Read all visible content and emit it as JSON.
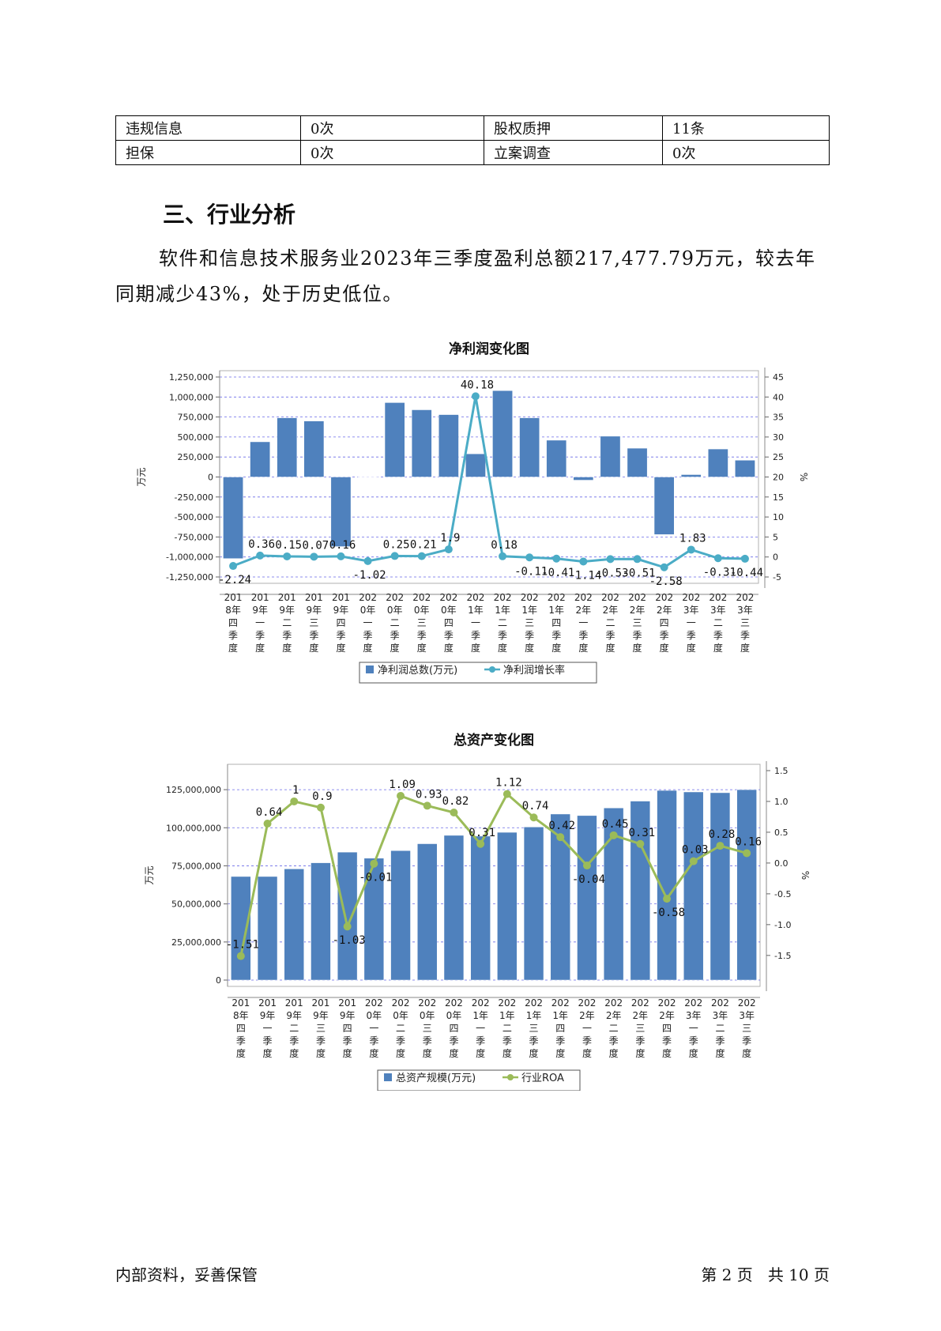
{
  "info_table": {
    "rows": [
      [
        "违规信息",
        "0次",
        "股权质押",
        "11条"
      ],
      [
        "担保",
        "0次",
        "立案调查",
        "0次"
      ]
    ]
  },
  "section": {
    "title": "三、行业分析",
    "paragraph": "软件和信息技术服务业2023年三季度盈利总额217,477.79万元，较去年同期减少43%，处于历史低位。"
  },
  "quarters": [
    [
      "201",
      "8年",
      "四",
      "季",
      "度"
    ],
    [
      "201",
      "9年",
      "一",
      "季",
      "度"
    ],
    [
      "201",
      "9年",
      "二",
      "季",
      "度"
    ],
    [
      "201",
      "9年",
      "三",
      "季",
      "度"
    ],
    [
      "201",
      "9年",
      "四",
      "季",
      "度"
    ],
    [
      "202",
      "0年",
      "一",
      "季",
      "度"
    ],
    [
      "202",
      "0年",
      "二",
      "季",
      "度"
    ],
    [
      "202",
      "0年",
      "三",
      "季",
      "度"
    ],
    [
      "202",
      "0年",
      "四",
      "季",
      "度"
    ],
    [
      "202",
      "1年",
      "一",
      "季",
      "度"
    ],
    [
      "202",
      "1年",
      "二",
      "季",
      "度"
    ],
    [
      "202",
      "1年",
      "三",
      "季",
      "度"
    ],
    [
      "202",
      "1年",
      "四",
      "季",
      "度"
    ],
    [
      "202",
      "2年",
      "一",
      "季",
      "度"
    ],
    [
      "202",
      "2年",
      "二",
      "季",
      "度"
    ],
    [
      "202",
      "2年",
      "三",
      "季",
      "度"
    ],
    [
      "202",
      "2年",
      "四",
      "季",
      "度"
    ],
    [
      "202",
      "3年",
      "一",
      "季",
      "度"
    ],
    [
      "202",
      "3年",
      "二",
      "季",
      "度"
    ],
    [
      "202",
      "3年",
      "三",
      "季",
      "度"
    ]
  ],
  "chart_data": [
    {
      "type": "bar",
      "title": "净利润变化图",
      "ylabel": "万元",
      "y2label": "%",
      "ylim": [
        -1250000,
        1250000
      ],
      "y2lim": [
        -5,
        45
      ],
      "yticks": [
        -1250000,
        -1000000,
        -750000,
        -500000,
        -250000,
        0,
        250000,
        500000,
        750000,
        1000000,
        1250000
      ],
      "ytick_labels": [
        "-1,250,000",
        "-1,000,000",
        "-750,000",
        "-500,000",
        "-250,000",
        "0",
        "250,000",
        "500,000",
        "750,000",
        "1,000,000",
        "1,250,000"
      ],
      "y2ticks": [
        "-5",
        "0",
        "5",
        "10",
        "15",
        "20",
        "25",
        "30",
        "35",
        "40",
        "45"
      ],
      "grid": true,
      "series": [
        {
          "name": "净利润总数(万元)",
          "kind": "bar",
          "color": "#4f81bd",
          "values": [
            -1020000,
            440000,
            740000,
            700000,
            -870000,
            0,
            930000,
            840000,
            780000,
            290000,
            1080000,
            740000,
            460000,
            -40000,
            510000,
            360000,
            -720000,
            30000,
            350000,
            210000
          ]
        },
        {
          "name": "净利润增长率",
          "kind": "line",
          "color": "#4bacc6",
          "values": [
            -2.24,
            0.36,
            0.15,
            0.07,
            0.16,
            -1.02,
            0.25,
            0.21,
            1.9,
            40.18,
            0.18,
            -0.11,
            -0.41,
            -1.14,
            -0.53,
            -0.51,
            -2.58,
            1.83,
            -0.31,
            -0.44
          ],
          "labels": [
            "-2.24",
            "0.36",
            "0.15",
            "0.07",
            "0.16",
            "-1.02",
            "0.25",
            "0.21",
            "1.9",
            "40.18",
            "0.18",
            "-0.11",
            "-0.41",
            "-1.14",
            "-0.53",
            "-0.51",
            "-2.58",
            "1.83",
            "-0.31",
            "-0.44"
          ]
        }
      ],
      "legend": "bottom"
    },
    {
      "type": "bar",
      "title": "总资产变化图",
      "ylabel": "万元",
      "y2label": "%",
      "ylim": [
        0,
        137500000
      ],
      "y2lim": [
        -1.9,
        1.5
      ],
      "yticks": [
        0,
        25000000,
        50000000,
        75000000,
        100000000,
        125000000
      ],
      "ytick_labels": [
        "0",
        "25,000,000",
        "50,000,000",
        "75,000,000",
        "100,000,000",
        "125,000,000"
      ],
      "y2ticks": [
        "-1.5",
        "-1.0",
        "-0.5",
        "0.0",
        "0.5",
        "1.0",
        "1.5"
      ],
      "grid": true,
      "series": [
        {
          "name": "总资产规模(万元)",
          "kind": "bar",
          "color": "#4f81bd",
          "values": [
            68000000,
            68000000,
            73000000,
            77000000,
            84000000,
            80000000,
            85000000,
            89500000,
            95000000,
            94500000,
            97000000,
            100500000,
            109000000,
            108000000,
            113000000,
            117500000,
            124500000,
            123500000,
            123000000,
            125000000
          ]
        },
        {
          "name": "行业ROA",
          "kind": "line",
          "color": "#9bbb59",
          "values": [
            -1.51,
            0.64,
            1,
            0.9,
            -1.03,
            -0.01,
            1.09,
            0.93,
            0.82,
            0.31,
            1.12,
            0.74,
            0.42,
            -0.04,
            0.45,
            0.31,
            -0.58,
            0.03,
            0.28,
            0.16
          ],
          "labels": [
            "-1.51",
            "0.64",
            "1",
            "0.9",
            "-1.03",
            "-0.01",
            "1.09",
            "0.93",
            "0.82",
            "0.31",
            "1.12",
            "0.74",
            "0.42",
            "-0.04",
            "0.45",
            "0.31",
            "-0.58",
            "0.03",
            "0.28",
            "0.16"
          ]
        }
      ],
      "legend": "bottom"
    }
  ],
  "footer": {
    "left": "内部资料，妥善保管",
    "right": "第 2 页   共 10 页"
  }
}
